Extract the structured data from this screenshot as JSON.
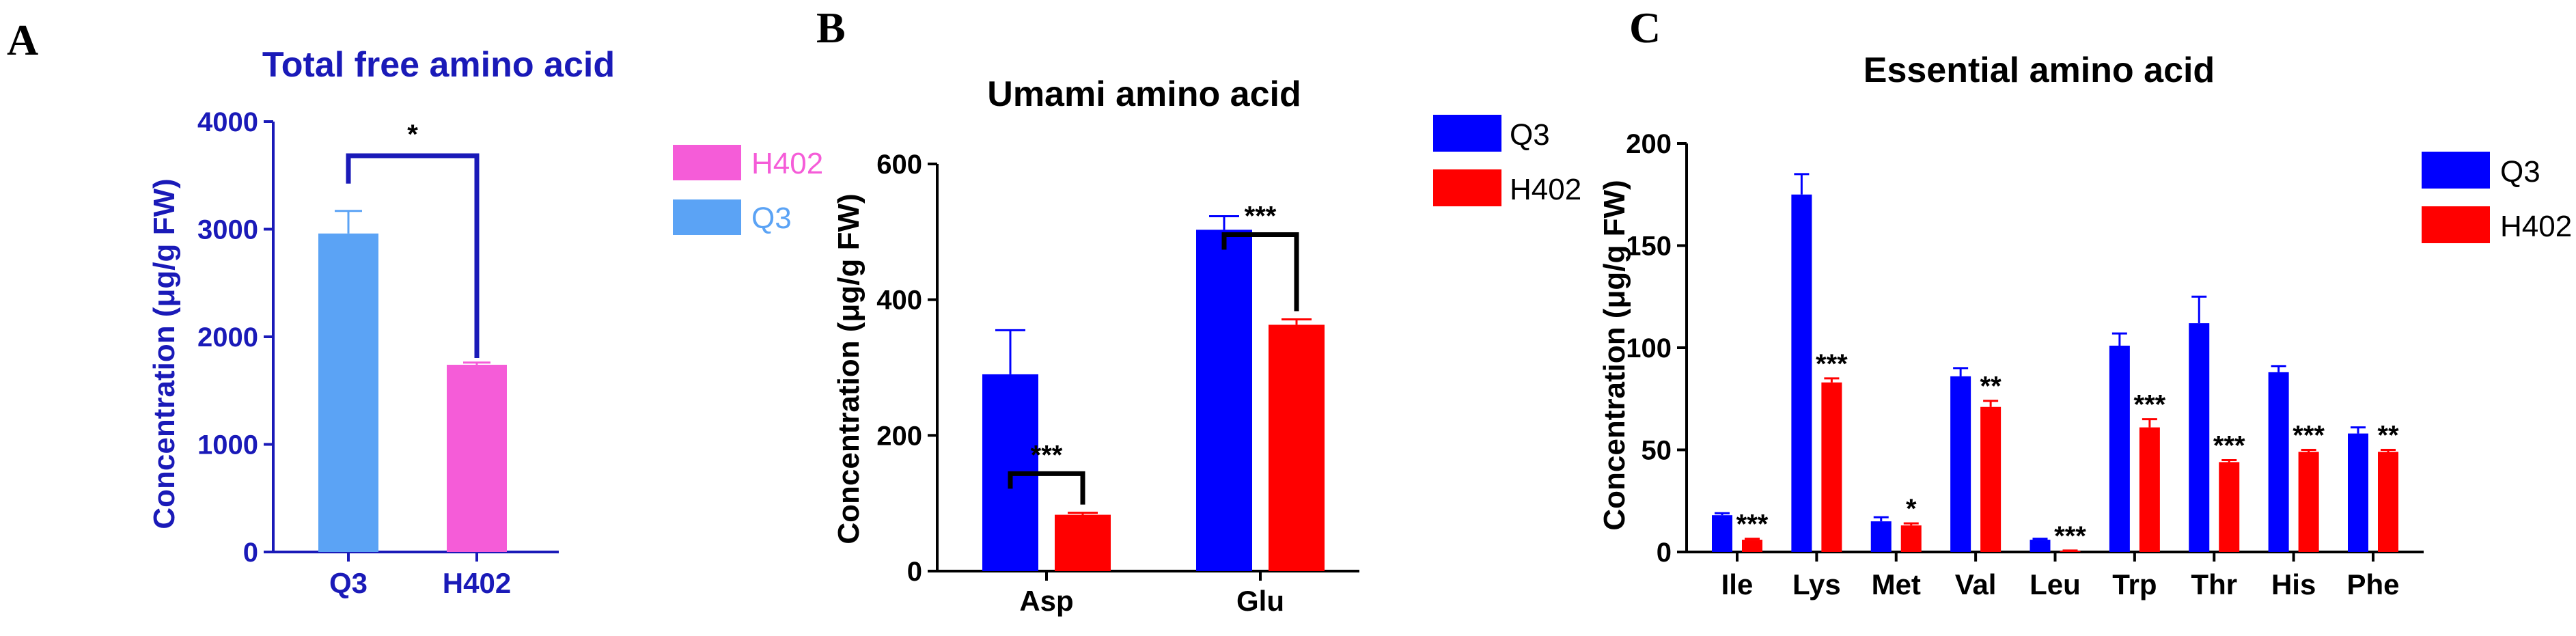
{
  "panels": {
    "A": {
      "letter": "A"
    },
    "B": {
      "letter": "B"
    },
    "C": {
      "letter": "C"
    }
  },
  "chart_data": [
    {
      "type": "bar",
      "title": "Total free amino acid",
      "ylabel": "Concentration (μg/g FW)",
      "xlabel": "",
      "categories": [
        "Q3",
        "H402"
      ],
      "values": [
        2960,
        1740
      ],
      "errors": [
        210,
        20
      ],
      "ylim": [
        0,
        4000
      ],
      "yticks": [
        0,
        1000,
        2000,
        3000,
        4000
      ],
      "bar_colors": [
        "#5ba3f5",
        "#f55cd8"
      ],
      "axis_color": "#1a1ab8",
      "legend": [
        {
          "name": "H402",
          "color": "#f55cd8"
        },
        {
          "name": "Q3",
          "color": "#5ba3f5"
        }
      ],
      "legend_position": "right",
      "significance": [
        {
          "from": 0,
          "to": 1,
          "label": "*",
          "bracket": true
        }
      ]
    },
    {
      "type": "bar",
      "title": "Umami amino acid",
      "ylabel": "Concentration (μg/g FW)",
      "xlabel": "",
      "categories": [
        "Asp",
        "Glu"
      ],
      "series": [
        {
          "name": "Q3",
          "color": "#0000ff",
          "values": [
            290,
            503
          ],
          "errors": [
            65,
            20
          ]
        },
        {
          "name": "H402",
          "color": "#ff0000",
          "values": [
            83,
            363
          ],
          "errors": [
            3,
            8
          ]
        }
      ],
      "ylim": [
        0,
        600
      ],
      "yticks": [
        0,
        200,
        400,
        600
      ],
      "legend_position": "top-right",
      "significance": [
        {
          "category": 0,
          "label": "***",
          "bracket": true
        },
        {
          "category": 1,
          "label": "***",
          "bracket": true
        }
      ]
    },
    {
      "type": "bar",
      "title": "Essential amino acid",
      "ylabel": "Concentration (μg/g FW)",
      "xlabel": "",
      "categories": [
        "Ile",
        "Lys",
        "Met",
        "Val",
        "Leu",
        "Trp",
        "Thr",
        "His",
        "Phe"
      ],
      "series": [
        {
          "name": "Q3",
          "color": "#0000ff",
          "values": [
            18,
            175,
            15,
            86,
            6,
            101,
            112,
            88,
            58
          ],
          "errors": [
            1,
            10,
            2,
            4,
            0.5,
            6,
            13,
            3,
            3
          ]
        },
        {
          "name": "H402",
          "color": "#ff0000",
          "values": [
            6,
            83,
            13,
            71,
            0.5,
            61,
            44,
            49,
            49
          ],
          "errors": [
            0.5,
            2,
            1,
            3,
            0.2,
            4,
            1,
            1,
            1
          ]
        }
      ],
      "ylim": [
        0,
        200
      ],
      "yticks": [
        0,
        50,
        100,
        150,
        200
      ],
      "legend_position": "top-right",
      "significance_labels": [
        "***",
        "***",
        "*",
        "**",
        "***",
        "***",
        "***",
        "***",
        "**"
      ]
    }
  ]
}
